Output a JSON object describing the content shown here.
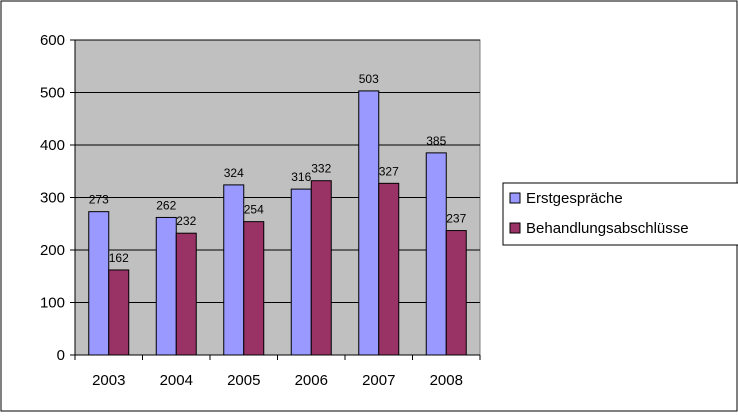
{
  "chart_data": {
    "type": "bar",
    "categories": [
      "2003",
      "2004",
      "2005",
      "2006",
      "2007",
      "2008"
    ],
    "series": [
      {
        "name": "Erstgespräche",
        "values": [
          273,
          262,
          324,
          316,
          503,
          385
        ],
        "data_labels": [
          "273",
          "262",
          "324",
          "316",
          "503",
          "385"
        ],
        "color": "#9999ff"
      },
      {
        "name": "Behandlungsabschlüsse",
        "values": [
          162,
          232,
          254,
          332,
          327,
          237
        ],
        "data_labels": [
          "162",
          "232",
          "254",
          "332",
          "327",
          "237"
        ],
        "color": "#993366"
      }
    ],
    "ylim": [
      0,
      600
    ],
    "yticks": [
      0,
      100,
      200,
      300,
      400,
      500,
      600
    ],
    "ytick_labels": [
      "0",
      "100",
      "200",
      "300",
      "400",
      "500",
      "600"
    ],
    "grid": true,
    "legend_position": "right",
    "plot_background": "#c0c0c0"
  }
}
